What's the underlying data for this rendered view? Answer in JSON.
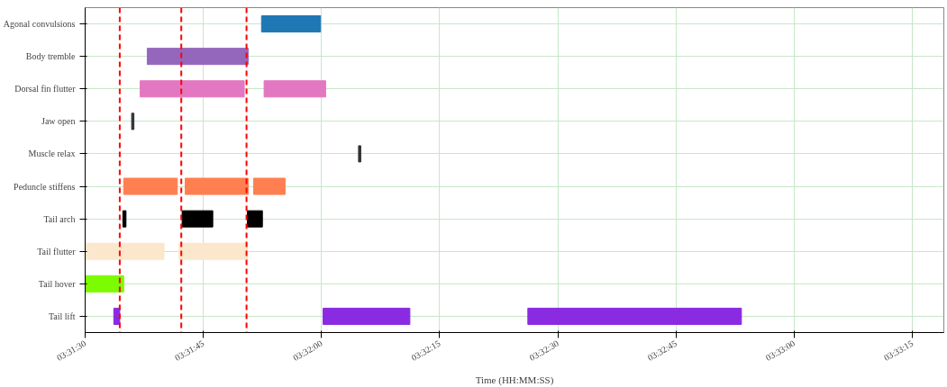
{
  "chart_data": {
    "type": "bar",
    "orientation": "horizontal",
    "xlabel": "Time (HH:MM:SS)",
    "categories": [
      "Agonal convulsions",
      "Body tremble",
      "Dorsal fin flutter",
      "Jaw open",
      "Muscle relax",
      "Peduncle stiffens",
      "Tail arch",
      "Tail flutter",
      "Tail hover",
      "Tail lift"
    ],
    "series": [
      {
        "colors": [
          "#1f77b4",
          "#9467bd",
          "#e377c2",
          "#333333",
          "#333333",
          "#ff7f50",
          "#000000",
          "#fbe8cc",
          "#7cfc00",
          "#8a2be2"
        ],
        "base": [
          3.53122,
          3.52719,
          3.52694,
          3.52664,
          3.53464,
          3.52636,
          3.52633,
          3.525,
          3.525,
          3.52601
        ],
        "values": [
          0.00208,
          0.00356,
          0.00367,
          8e-05,
          8e-05,
          0.00189,
          0.00011,
          0.00278,
          0.00136,
          0.00021
        ]
      },
      {
        "colors": [
          "#1f77b4",
          "#9467bd",
          "#e377c2",
          "#333333",
          "#333333",
          "#ff7f50",
          "#000000",
          "#fbe8cc",
          "#7cfc00",
          "#8a2be2"
        ],
        "base": [
          null,
          null,
          3.53131,
          null,
          null,
          3.52853,
          3.52842,
          3.52831,
          null,
          3.53339
        ],
        "values": [
          null,
          null,
          0.00217,
          null,
          null,
          0.00222,
          0.00108,
          0.00242,
          null,
          0.00306
        ]
      },
      {
        "colors": [
          "#1f77b4",
          "#9467bd",
          "#e377c2",
          "#333333",
          "#333333",
          "#ff7f50",
          "#000000",
          "#fbe8cc",
          "#7cfc00",
          "#8a2be2"
        ],
        "base": [
          null,
          null,
          null,
          null,
          null,
          3.53094,
          3.53072,
          null,
          null,
          3.54061
        ],
        "values": [
          null,
          null,
          null,
          null,
          null,
          0.00111,
          0.00053,
          null,
          null,
          0.00753
        ]
      }
    ],
    "xlim": [
      3.525,
      3.555278
    ],
    "xticks": [
      {
        "value": 3.525,
        "label": "03:31:30"
      },
      {
        "value": 3.529167,
        "label": "03:31:45"
      },
      {
        "value": 3.533333,
        "label": "03:32:00"
      },
      {
        "value": 3.5375,
        "label": "03:32:15"
      },
      {
        "value": 3.541667,
        "label": "03:32:30"
      },
      {
        "value": 3.545833,
        "label": "03:32:45"
      },
      {
        "value": 3.55,
        "label": "03:33:00"
      },
      {
        "value": 3.554167,
        "label": "03:33:15"
      }
    ],
    "ref_lines": [
      {
        "axis": "x",
        "value": 3.52622,
        "color": "#ff0000",
        "line_style": "dashed"
      },
      {
        "axis": "x",
        "value": 3.52839,
        "color": "#ff0000",
        "line_style": "dashed"
      },
      {
        "axis": "x",
        "value": 3.53069,
        "color": "#ff0000",
        "line_style": "dashed"
      }
    ],
    "grid": true
  }
}
